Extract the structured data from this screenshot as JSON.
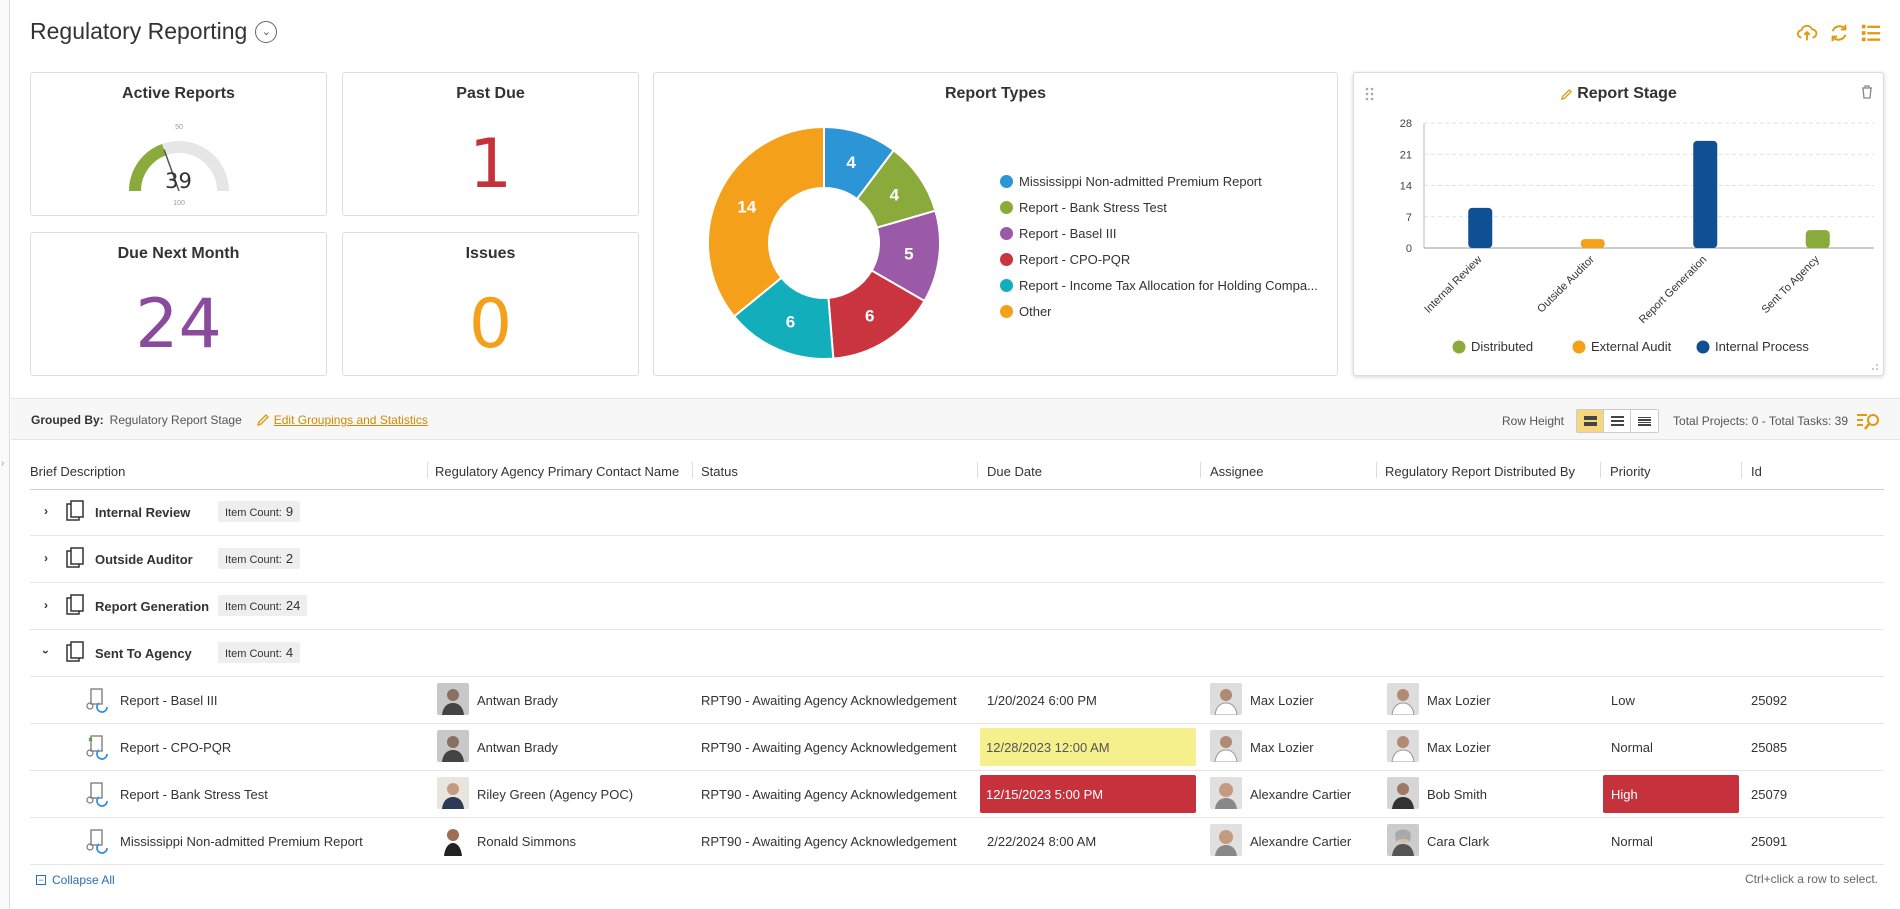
{
  "header": {
    "title": "Regulatory Reporting"
  },
  "kpis": {
    "active_reports": {
      "title": "Active Reports",
      "value": "39",
      "gauge_max_label": "50",
      "gauge_min_label": "100",
      "fraction": 0.39
    },
    "past_due": {
      "title": "Past Due",
      "value": "1",
      "color": "#c6323c"
    },
    "due_next_month": {
      "title": "Due Next Month",
      "value": "24",
      "color": "#8a4b9c"
    },
    "issues": {
      "title": "Issues",
      "value": "0",
      "color": "#f5a01a"
    }
  },
  "report_types": {
    "title": "Report Types",
    "legend": [
      "Mississippi Non-admitted Premium Report",
      "Report - Bank Stress Test",
      "Report - Basel III",
      "Report - CPO-PQR",
      "Report - Income Tax Allocation for Holding Compa...",
      "Other"
    ]
  },
  "report_stage": {
    "title": "Report Stage"
  },
  "chart_data": [
    {
      "type": "pie",
      "title": "Report Types",
      "labels": [
        "Mississippi Non-admitted Premium Report",
        "Report - Bank Stress Test",
        "Report - Basel III",
        "Report - CPO-PQR",
        "Report - Income Tax Allocation for Holding Compa...",
        "Other"
      ],
      "values": [
        4,
        4,
        5,
        6,
        6,
        14
      ],
      "colors": [
        "#2b95d6",
        "#8aaa3c",
        "#9a5aa8",
        "#c9343e",
        "#13aebc",
        "#f5a01a"
      ],
      "donut": true
    },
    {
      "type": "bar",
      "title": "Report Stage",
      "categories": [
        "Internal Review",
        "Outside Auditor",
        "Report Generation",
        "Sent To Agency"
      ],
      "series": [
        {
          "name": "Distributed",
          "values": [
            0,
            0,
            0,
            4
          ],
          "color": "#8aaa3c"
        },
        {
          "name": "External Audit",
          "values": [
            0,
            2,
            0,
            0
          ],
          "color": "#f5a01a"
        },
        {
          "name": "Internal Process",
          "values": [
            9,
            0,
            24,
            0
          ],
          "color": "#0f4f93"
        }
      ],
      "yticks": [
        0,
        7,
        14,
        21,
        28
      ],
      "ylim": [
        0,
        28
      ],
      "grid": true,
      "legend": "bottom"
    }
  ],
  "groupbar": {
    "grouped_by_label": "Grouped By:",
    "grouped_by_value": "Regulatory Report Stage",
    "edit_link": "Edit Groupings and Statistics",
    "row_height_label": "Row Height",
    "totals": "Total Projects: 0 - Total Tasks: 39"
  },
  "columns": [
    "Brief Description",
    "Regulatory Agency Primary Contact Name",
    "Status",
    "Due Date",
    "Assignee",
    "Regulatory Report Distributed By",
    "Priority",
    "Id"
  ],
  "groups": [
    {
      "name": "Internal Review",
      "count_label": "Item Count:",
      "count": "9",
      "expanded": false
    },
    {
      "name": "Outside Auditor",
      "count_label": "Item Count:",
      "count": "2",
      "expanded": false
    },
    {
      "name": "Report Generation",
      "count_label": "Item Count:",
      "count": "24",
      "expanded": false
    },
    {
      "name": "Sent To Agency",
      "count_label": "Item Count:",
      "count": "4",
      "expanded": true
    }
  ],
  "rows": [
    {
      "desc": "Report - Basel III",
      "contact": "Antwan Brady",
      "status": "RPT90 - Awaiting Agency Acknowledgement",
      "due": "1/20/2024  6:00 PM",
      "assignee": "Max Lozier",
      "distributed_by": "Max Lozier",
      "priority": "Low",
      "id": "25092"
    },
    {
      "desc": "Report - CPO-PQR",
      "contact": "Antwan Brady",
      "status": "RPT90 - Awaiting Agency Acknowledgement",
      "due": "12/28/2023  12:00 AM",
      "assignee": "Max Lozier",
      "distributed_by": "Max Lozier",
      "priority": "Normal",
      "id": "25085"
    },
    {
      "desc": "Report - Bank Stress Test",
      "contact": "Riley Green (Agency POC)",
      "status": "RPT90 - Awaiting Agency Acknowledgement",
      "due": "12/15/2023  5:00 PM",
      "assignee": "Alexandre Cartier",
      "distributed_by": "Bob Smith",
      "priority": "High",
      "id": "25079"
    },
    {
      "desc": "Mississippi Non-admitted Premium Report",
      "contact": "Ronald Simmons",
      "status": "RPT90 - Awaiting Agency Acknowledgement",
      "due": "2/22/2024  8:00 AM",
      "assignee": "Alexandre Cartier",
      "distributed_by": "Cara Clark",
      "priority": "Normal",
      "id": "25091"
    }
  ],
  "footer": {
    "collapse_all": "Collapse All",
    "hint": "Ctrl+click a row to select."
  },
  "icons": {
    "title_dropdown": "chevron-down-icon",
    "upload": "cloud-upload-icon",
    "refresh": "refresh-icon",
    "list": "list-icon",
    "edit": "pencil-icon",
    "delete": "trash-icon",
    "drag": "drag-handle-icon"
  }
}
